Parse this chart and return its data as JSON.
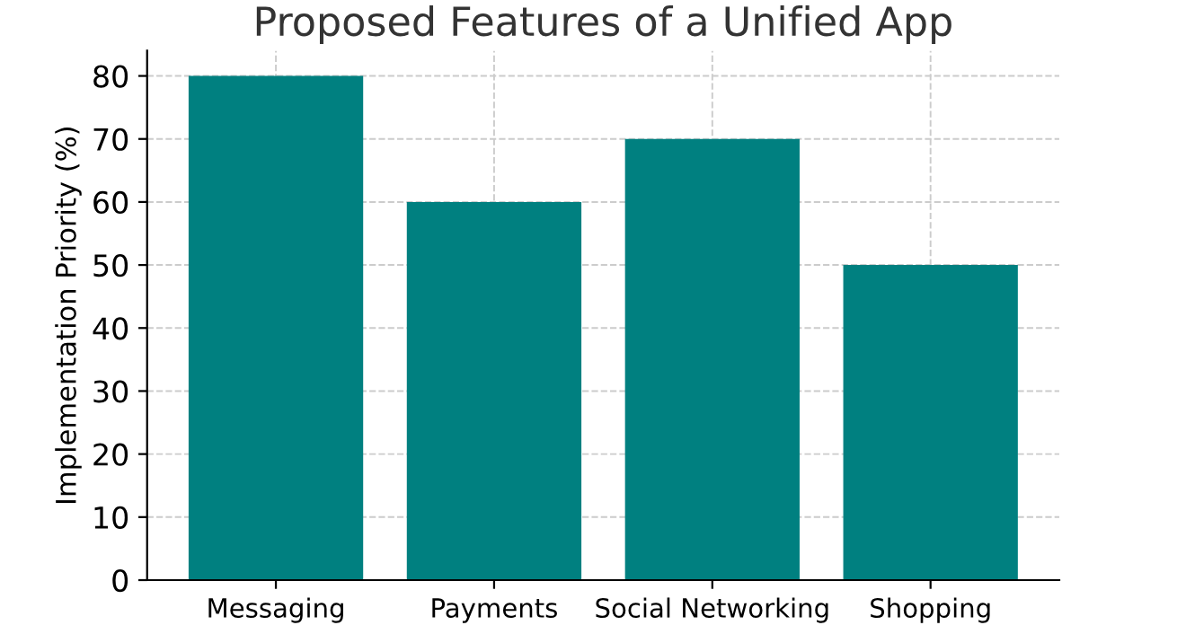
{
  "chart_data": {
    "type": "bar",
    "title": "Proposed Features of a Unified App",
    "ylabel": "Implementation Priority (%)",
    "categories": [
      "Messaging",
      "Payments",
      "Social Networking",
      "Shopping"
    ],
    "values": [
      80,
      60,
      70,
      50
    ],
    "color": "#008080",
    "ylim": [
      0,
      84
    ],
    "yticks": [
      0,
      10,
      20,
      30,
      40,
      50,
      60,
      70,
      80
    ],
    "grid": true
  }
}
